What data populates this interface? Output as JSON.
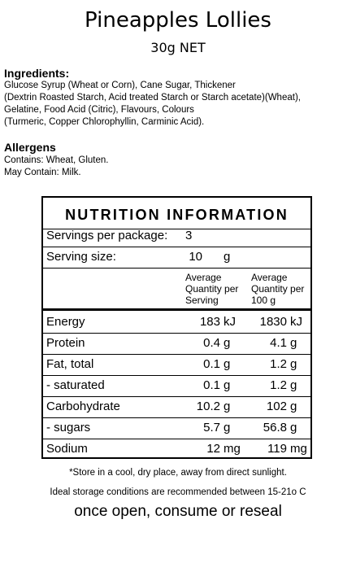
{
  "product": {
    "title": "Pineapples Lollies",
    "net": "30g NET"
  },
  "ingredients": {
    "heading": "Ingredients:",
    "lines": [
      "Glucose Syrup (Wheat or Corn), Cane Sugar, Thickener",
      "(Dextrin Roasted Starch, Acid treated Starch or Starch acetate)(Wheat),",
      "Gelatine, Food Acid (Citric), Flavours, Colours",
      "(Turmeric, Copper Chlorophyllin, Carminic Acid)."
    ]
  },
  "allergens": {
    "heading": "Allergens",
    "lines": [
      "Contains: Wheat, Gluten.",
      "May Contain: Milk."
    ]
  },
  "nutrition": {
    "title": "NUTRITION INFORMATION",
    "servings_label": "Servings per package:",
    "servings_value": "3",
    "serving_size_label": "Serving size:",
    "serving_size_value": "10",
    "serving_size_unit": "g",
    "col1_head": [
      "Average",
      "Quantity per",
      "Serving"
    ],
    "col2_head": [
      "Average",
      "Quantity per",
      "100 g"
    ],
    "rows": [
      {
        "name": "Energy",
        "v1": "183",
        "u1": "kJ",
        "v2": "1830",
        "u2": "kJ"
      },
      {
        "name": "Protein",
        "v1": "0.4",
        "u1": "g",
        "v2": "4.1",
        "u2": "g"
      },
      {
        "name": "Fat, total",
        "v1": "0.1",
        "u1": "g",
        "v2": "1.2",
        "u2": "g"
      },
      {
        "name": "- saturated",
        "v1": "0.1",
        "u1": "g",
        "v2": "1.2",
        "u2": "g"
      },
      {
        "name": "Carbohydrate",
        "v1": "10.2",
        "u1": "g",
        "v2": "102",
        "u2": "g"
      },
      {
        "name": "- sugars",
        "v1": "5.7",
        "u1": "g",
        "v2": "56.8",
        "u2": "g"
      },
      {
        "name": "Sodium",
        "v1": "12",
        "u1": "mg",
        "v2": "119",
        "u2": "mg"
      }
    ]
  },
  "footer": {
    "store": "*Store in a cool, dry place, away from direct sunlight.",
    "ideal": "Ideal storage conditions are recommended between 15-21o C",
    "reseal": "once open, consume or reseal"
  }
}
